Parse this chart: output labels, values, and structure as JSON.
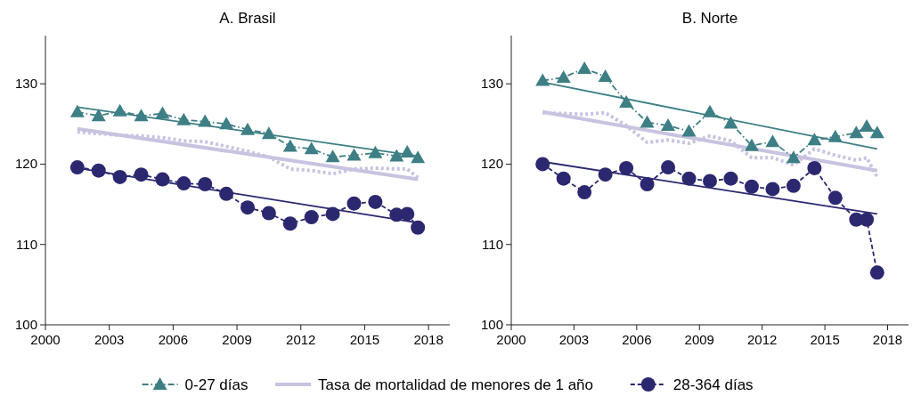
{
  "chart_data": [
    {
      "type": "line",
      "title": "A. Brasil",
      "legend": "bottom",
      "xlim": [
        2000,
        2019
      ],
      "xticks": [
        2000,
        2003,
        2006,
        2009,
        2012,
        2015,
        2018
      ],
      "ylim": [
        100,
        136
      ],
      "yticks": [
        100,
        110,
        120,
        130
      ],
      "series": [
        {
          "name": "0-27 días",
          "color": "#3d7f84",
          "marker": "triangle",
          "line_style": "dashed",
          "x": [
            2001.5,
            2002.5,
            2003.5,
            2004.5,
            2005.5,
            2006.5,
            2007.5,
            2008.5,
            2009.5,
            2010.5,
            2011.5,
            2012.5,
            2013.5,
            2014.5,
            2015.5,
            2016.5,
            2017,
            2017.5
          ],
          "values": [
            126.5,
            126.0,
            126.6,
            126.0,
            126.3,
            125.5,
            125.3,
            125.0,
            124.3,
            123.8,
            122.2,
            121.9,
            120.9,
            121.1,
            121.4,
            121.0,
            121.5,
            120.8
          ]
        },
        {
          "name": "Tasa de mortalidad de menores de 1 año",
          "color": "#c8c3e0",
          "marker": "none",
          "line_style": "dotted",
          "x": [
            2001.5,
            2002.5,
            2003.5,
            2004.5,
            2005.5,
            2006.5,
            2007.5,
            2008.5,
            2009.5,
            2010.5,
            2011.5,
            2012.5,
            2013.5,
            2014.5,
            2015.5,
            2016.5,
            2017,
            2017.5
          ],
          "values": [
            124.0,
            123.8,
            123.6,
            123.5,
            123.3,
            122.9,
            122.8,
            122.2,
            121.6,
            120.9,
            119.4,
            119.2,
            118.8,
            119.4,
            119.5,
            119.4,
            119.4,
            118.3
          ]
        },
        {
          "name": "28-364 días",
          "color": "#2b2870",
          "marker": "circle",
          "line_style": "dashed",
          "x": [
            2001.5,
            2002.5,
            2003.5,
            2004.5,
            2005.5,
            2006.5,
            2007.5,
            2008.5,
            2009.5,
            2010.5,
            2011.5,
            2012.5,
            2013.5,
            2014.5,
            2015.5,
            2016.5,
            2017,
            2017.5
          ],
          "values": [
            119.6,
            119.2,
            118.4,
            118.7,
            118.1,
            117.6,
            117.5,
            116.3,
            114.6,
            113.9,
            112.6,
            113.4,
            113.8,
            115.1,
            115.3,
            113.7,
            113.8,
            112.1
          ]
        },
        {
          "type": "line",
          "color": "#3d7f84",
          "line_style": "solid",
          "x": [
            2001.5,
            2017.5
          ],
          "values": [
            127.1,
            121.0
          ]
        },
        {
          "type": "line",
          "color": "#c8c3e0",
          "line_style": "solid",
          "x": [
            2001.5,
            2017.5
          ],
          "values": [
            124.4,
            118.1
          ]
        },
        {
          "type": "line",
          "color": "#2b2870",
          "line_style": "solid",
          "x": [
            2001.5,
            2017.5
          ],
          "values": [
            119.5,
            112.7
          ]
        }
      ]
    },
    {
      "type": "line",
      "title": "B. Norte",
      "xlim": [
        2000,
        2019
      ],
      "xticks": [
        2000,
        2003,
        2006,
        2009,
        2012,
        2015,
        2018
      ],
      "ylim": [
        100,
        136
      ],
      "yticks": [
        100,
        110,
        120,
        130
      ],
      "series": [
        {
          "color": "#3d7f84",
          "marker": "triangle",
          "line_style": "dashed",
          "x": [
            2001.5,
            2002.5,
            2003.5,
            2004.5,
            2005.5,
            2006.5,
            2007.5,
            2008.5,
            2009.5,
            2010.5,
            2011.5,
            2012.5,
            2013.5,
            2014.5,
            2015.5,
            2016.5,
            2017,
            2017.5
          ],
          "values": [
            130.4,
            130.8,
            131.9,
            130.9,
            127.7,
            125.2,
            124.8,
            124.1,
            126.5,
            125.1,
            122.3,
            122.8,
            120.8,
            123.0,
            123.4,
            123.9,
            124.7,
            123.9
          ]
        },
        {
          "color": "#c8c3e0",
          "marker": "none",
          "line_style": "dotted",
          "x": [
            2001.5,
            2002.5,
            2003.5,
            2004.5,
            2005.5,
            2006.5,
            2007.5,
            2008.5,
            2009.5,
            2010.5,
            2011.5,
            2012.5,
            2013.5,
            2014.5,
            2015.5,
            2016.5,
            2017,
            2017.5
          ],
          "values": [
            126.4,
            126.3,
            126.2,
            126.4,
            124.8,
            122.7,
            123.0,
            122.6,
            123.5,
            122.9,
            120.8,
            120.8,
            119.9,
            121.9,
            121.1,
            120.5,
            120.8,
            118.4
          ]
        },
        {
          "color": "#2b2870",
          "marker": "circle",
          "line_style": "dashed",
          "x": [
            2001.5,
            2002.5,
            2003.5,
            2004.5,
            2005.5,
            2006.5,
            2007.5,
            2008.5,
            2009.5,
            2010.5,
            2011.5,
            2012.5,
            2013.5,
            2014.5,
            2015.5,
            2016.5,
            2017,
            2017.5
          ],
          "values": [
            120.0,
            118.2,
            116.5,
            118.7,
            119.5,
            117.5,
            119.6,
            118.2,
            117.9,
            118.2,
            117.2,
            116.9,
            117.3,
            119.5,
            115.8,
            113.1,
            113.1,
            106.5
          ]
        },
        {
          "type": "line",
          "color": "#3d7f84",
          "line_style": "solid",
          "x": [
            2001.5,
            2017.5
          ],
          "values": [
            130.2,
            121.9
          ]
        },
        {
          "type": "line",
          "color": "#c8c3e0",
          "line_style": "solid",
          "x": [
            2001.5,
            2017.5
          ],
          "values": [
            126.5,
            119.2
          ]
        },
        {
          "type": "line",
          "color": "#2b2870",
          "line_style": "solid",
          "x": [
            2001.5,
            2017.5
          ],
          "values": [
            120.3,
            113.8
          ]
        }
      ]
    }
  ]
}
